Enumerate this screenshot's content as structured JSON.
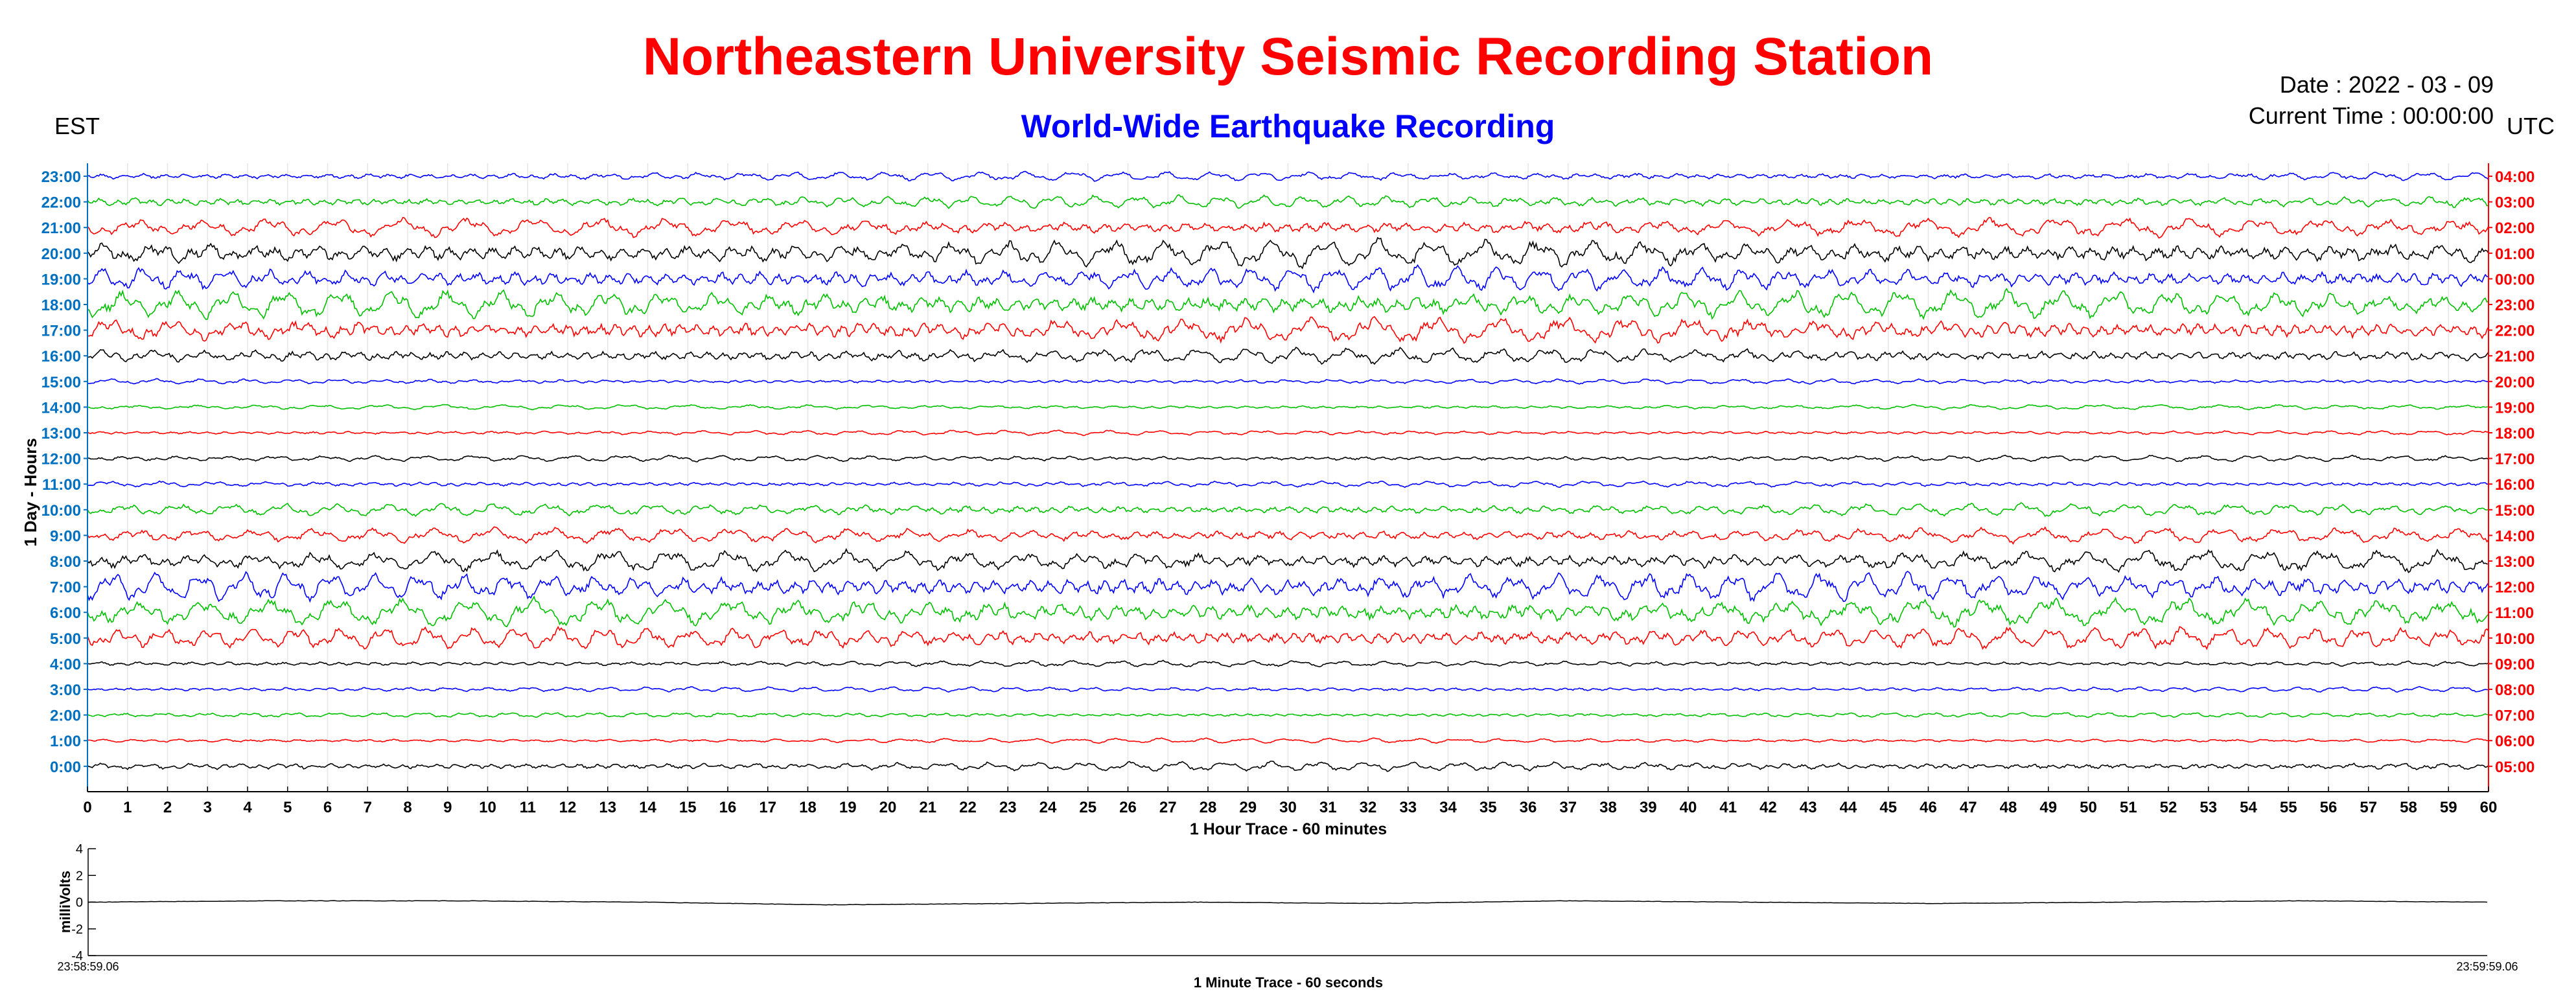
{
  "header": {
    "title": "Northeastern University Seismic Recording Station",
    "title_color": "#ff0000",
    "subtitle": "World-Wide Earthquake Recording",
    "subtitle_color": "#0000ff",
    "left_timezone": "EST",
    "right_timezone": "UTC",
    "date": "Date : 2022 - 03 - 09",
    "current_time": "Current Time : 00:00:00"
  },
  "chart_data": [
    {
      "type": "line",
      "title": "",
      "xlabel": "1 Hour Trace - 60 minutes",
      "ylabel": "1 Day - Hours",
      "xlim": [
        0,
        60
      ],
      "x_ticks": [
        0,
        1,
        2,
        3,
        4,
        5,
        6,
        7,
        8,
        9,
        10,
        11,
        12,
        13,
        14,
        15,
        16,
        17,
        18,
        19,
        20,
        21,
        22,
        23,
        24,
        25,
        26,
        27,
        28,
        29,
        30,
        31,
        32,
        33,
        34,
        35,
        36,
        37,
        38,
        39,
        40,
        41,
        42,
        43,
        44,
        45,
        46,
        47,
        48,
        49,
        50,
        51,
        52,
        53,
        54,
        55,
        56,
        57,
        58,
        59,
        60
      ],
      "grid": "vertical",
      "left_axis_color": "#0070c0",
      "right_axis_color": "#ff0000",
      "trace_colors": [
        "#000000",
        "#ff0000",
        "#00c000",
        "#0000ff"
      ],
      "rows": [
        {
          "est": "23:00",
          "utc": "04:00",
          "color": "#0000ff",
          "amplitude": 0.15
        },
        {
          "est": "22:00",
          "utc": "03:00",
          "color": "#00c000",
          "amplitude": 0.2
        },
        {
          "est": "21:00",
          "utc": "02:00",
          "color": "#ff0000",
          "amplitude": 0.3
        },
        {
          "est": "20:00",
          "utc": "01:00",
          "color": "#000000",
          "amplitude": 0.45
        },
        {
          "est": "19:00",
          "utc": "00:00",
          "color": "#0000ff",
          "amplitude": 0.4
        },
        {
          "est": "18:00",
          "utc": "23:00",
          "color": "#00c000",
          "amplitude": 0.45
        },
        {
          "est": "17:00",
          "utc": "22:00",
          "color": "#ff0000",
          "amplitude": 0.4
        },
        {
          "est": "16:00",
          "utc": "21:00",
          "color": "#000000",
          "amplitude": 0.25
        },
        {
          "est": "15:00",
          "utc": "20:00",
          "color": "#0000ff",
          "amplitude": 0.08
        },
        {
          "est": "14:00",
          "utc": "19:00",
          "color": "#00c000",
          "amplitude": 0.08
        },
        {
          "est": "13:00",
          "utc": "18:00",
          "color": "#ff0000",
          "amplitude": 0.08
        },
        {
          "est": "12:00",
          "utc": "17:00",
          "color": "#000000",
          "amplitude": 0.1
        },
        {
          "est": "11:00",
          "utc": "16:00",
          "color": "#0000ff",
          "amplitude": 0.1
        },
        {
          "est": "10:00",
          "utc": "15:00",
          "color": "#00c000",
          "amplitude": 0.2
        },
        {
          "est": "9:00",
          "utc": "14:00",
          "color": "#ff0000",
          "amplitude": 0.25
        },
        {
          "est": "8:00",
          "utc": "13:00",
          "color": "#000000",
          "amplitude": 0.35
        },
        {
          "est": "7:00",
          "utc": "12:00",
          "color": "#0000ff",
          "amplitude": 0.45
        },
        {
          "est": "6:00",
          "utc": "11:00",
          "color": "#00c000",
          "amplitude": 0.45
        },
        {
          "est": "5:00",
          "utc": "10:00",
          "color": "#ff0000",
          "amplitude": 0.35
        },
        {
          "est": "4:00",
          "utc": "09:00",
          "color": "#000000",
          "amplitude": 0.1
        },
        {
          "est": "3:00",
          "utc": "08:00",
          "color": "#0000ff",
          "amplitude": 0.08
        },
        {
          "est": "2:00",
          "utc": "07:00",
          "color": "#00c000",
          "amplitude": 0.08
        },
        {
          "est": "1:00",
          "utc": "06:00",
          "color": "#ff0000",
          "amplitude": 0.08
        },
        {
          "est": "0:00",
          "utc": "05:00",
          "color": "#000000",
          "amplitude": 0.15
        }
      ]
    },
    {
      "type": "line",
      "title": "",
      "xlabel": "1 Minute Trace  - 60 seconds",
      "ylabel": "milliVolts",
      "ylim": [
        -4,
        4
      ],
      "y_ticks": [
        4,
        2,
        0,
        -2,
        -4
      ],
      "x_start_label": "23:58:59.06",
      "x_end_label": "23:59:59.06",
      "color": "#000000",
      "values_mV": [
        0.0,
        0.1,
        0.1,
        0.0,
        -0.2,
        -0.1,
        0.0,
        -0.1,
        0.1,
        0.0,
        -0.1,
        0.0,
        0.1,
        0.0
      ]
    }
  ]
}
